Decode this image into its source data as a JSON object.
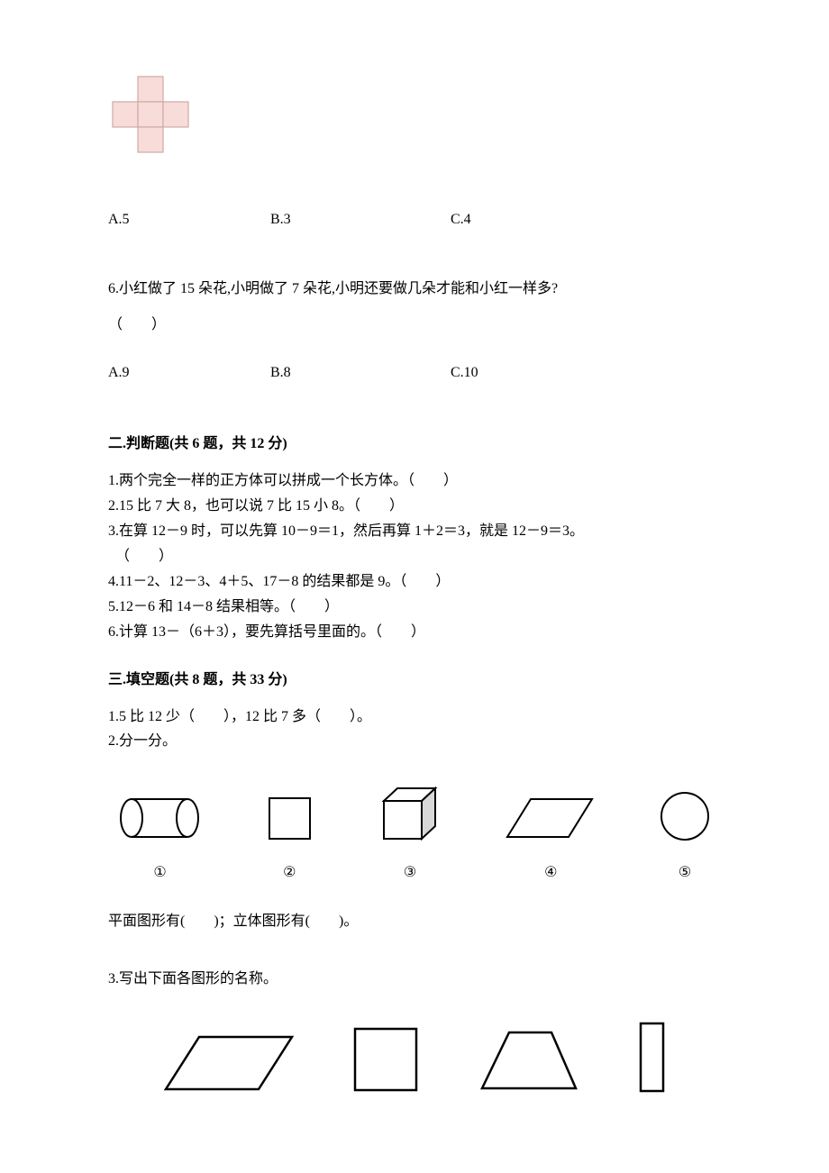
{
  "colors": {
    "text": "#000000",
    "bg": "#ffffff",
    "cross_fill": "#f7dcd9",
    "cross_stroke": "#cfa9a6",
    "shape_stroke": "#000000"
  },
  "cross": {
    "cell": 28,
    "stroke_width": 1.2
  },
  "q5": {
    "choices": {
      "a": "A.5",
      "b": "B.3",
      "c": "C.4"
    }
  },
  "q6": {
    "text": "6.小红做了 15 朵花,小明做了 7 朵花,小明还要做几朵才能和小红一样多?",
    "paren": "（　　）",
    "choices": {
      "a": "A.9",
      "b": "B.8",
      "c": "C.10"
    }
  },
  "section2": {
    "title": "二.判断题(共 6 题，共 12 分)",
    "items": [
      "1.两个完全一样的正方体可以拼成一个长方体。（　　）",
      "2.15 比 7 大 8，也可以说 7 比 15 小 8。（　　）",
      "3.在算 12－9 时，可以先算 10－9＝1，然后再算 1＋2＝3，就是 12－9＝3。",
      "　（　　）",
      "4.11－2、12－3、4＋5、17－8 的结果都是 9。（　　）",
      "5.12－6 和 14－8 结果相等。（　　）",
      "6.计算 13－（6＋3），要先算括号里面的。（　　）"
    ]
  },
  "section3": {
    "title": "三.填空题(共 8 题，共 33 分)",
    "q1": "1.5 比 12 少（　　），12 比 7 多（　　）。",
    "q2": {
      "text": "2.分一分。",
      "labels": [
        "①",
        "②",
        "③",
        "④",
        "⑤"
      ],
      "sentence": "平面图形有(　　)；立体图形有(　　)。",
      "shapes": {
        "stroke": "#000000",
        "stroke_width": 2
      }
    },
    "q3": {
      "text": "3.写出下面各图形的名称。",
      "shapes": {
        "stroke": "#000000",
        "stroke_width": 2.5
      }
    }
  }
}
